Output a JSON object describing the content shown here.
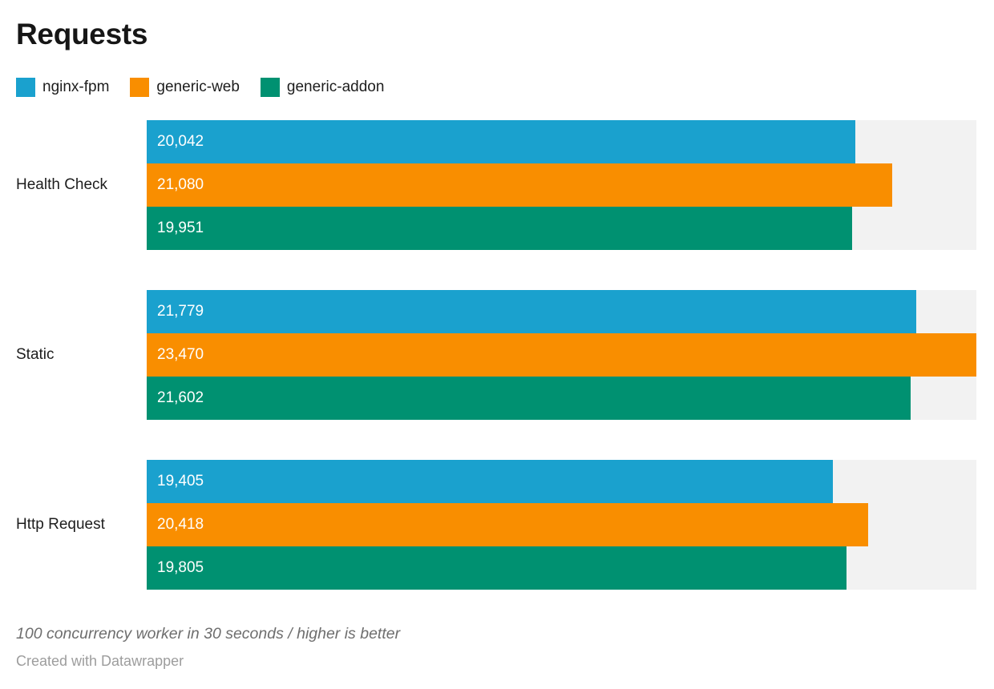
{
  "header": {
    "title": "Requests"
  },
  "chart_data": {
    "type": "bar",
    "orientation": "horizontal",
    "title": "Requests",
    "categories": [
      "Health Check",
      "Static",
      "Http Request"
    ],
    "series": [
      {
        "name": "nginx-fpm",
        "color": "#1aa1ce",
        "values": [
          20042,
          21779,
          19405
        ]
      },
      {
        "name": "generic-web",
        "color": "#f98e00",
        "values": [
          21080,
          23470,
          20418
        ]
      },
      {
        "name": "generic-addon",
        "color": "#009171",
        "values": [
          19951,
          21602,
          19805
        ]
      }
    ],
    "xlim": [
      0,
      23470
    ],
    "value_format": "#,###",
    "value_labels_inside_bars": true,
    "grid": false,
    "legend_position": "top",
    "track_color": "#f2f2f2",
    "note": "100 concurrency worker in 30 seconds / higher is better"
  },
  "footer": {
    "note": "100 concurrency worker in 30 seconds / higher is better",
    "attribution": "Created with Datawrapper"
  },
  "colors": {
    "background": "#ffffff",
    "title": "#161616",
    "category_label": "#1d1d1d",
    "bar_value_text": "#ffffff",
    "track": "#f2f2f2",
    "note": "#6e6e6e",
    "attribution": "#9d9d9d"
  }
}
